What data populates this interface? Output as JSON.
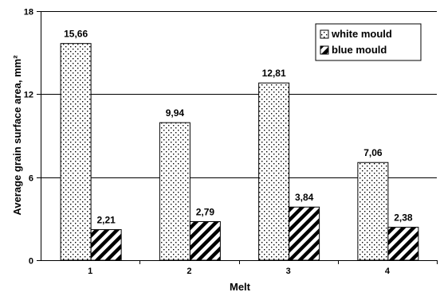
{
  "chart_data": {
    "type": "bar",
    "categories": [
      "1",
      "2",
      "3",
      "4"
    ],
    "series": [
      {
        "name": "white mould",
        "values": [
          15.66,
          9.94,
          12.81,
          7.06
        ],
        "labels": [
          "15,66",
          "9,94",
          "12,81",
          "7,06"
        ]
      },
      {
        "name": "blue mould",
        "values": [
          2.21,
          2.79,
          3.84,
          2.38
        ],
        "labels": [
          "2,21",
          "2,79",
          "3,84",
          "2,38"
        ]
      }
    ],
    "xlabel": "Melt",
    "ylabel": "Average grain surface area, mm²",
    "ylim": [
      0,
      18
    ],
    "yticks": [
      0,
      6,
      12,
      18
    ],
    "ytick_labels": [
      "0",
      "6",
      "12",
      "18"
    ],
    "grid": "horizontal",
    "legend": "top-right"
  }
}
